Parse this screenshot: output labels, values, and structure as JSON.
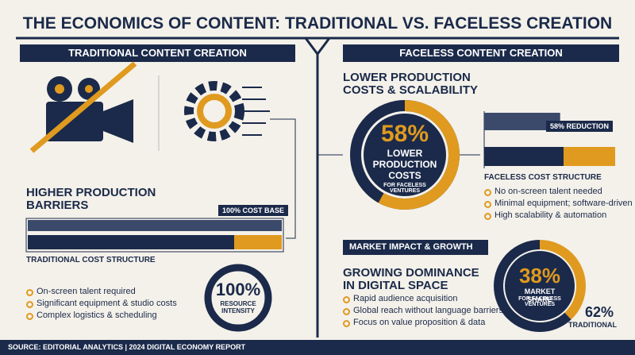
{
  "title": "THE ECONOMICS OF CONTENT: TRADITIONAL VS. FACELESS CREATION",
  "traditional": {
    "header": "TRADITIONAL CONTENT CREATION",
    "heading": "HIGHER PRODUCTION BARRIERS",
    "cost_bar": {
      "value": 100,
      "label": "100% COST BASE"
    },
    "structure_label": "TRADITIONAL COST STRUCTURE",
    "bullets": [
      "On-screen talent required",
      "Significant equipment & studio costs",
      "Complex logistics & scheduling"
    ],
    "donut": {
      "value": 100,
      "label": "100%",
      "caption": "RESOURCE INTENSITY"
    }
  },
  "faceless": {
    "header": "FACELESS CONTENT CREATION",
    "heading": "LOWER PRODUCTION COSTS & SCALABILITY",
    "donut": {
      "value": 58,
      "label": "58%",
      "caption": "LOWER PRODUCTION COSTS",
      "subcaption": "FOR FACELESS VENTURES"
    },
    "reduction_bar": {
      "value": 58,
      "label": "58% REDUCTION"
    },
    "structure_label": "FACELESS COST STRUCTURE",
    "bullets": [
      "No on-screen talent needed",
      "Minimal equipment; software-driven",
      "High scalability & automation"
    ]
  },
  "market": {
    "header": "MARKET IMPACT & GROWTH",
    "heading": "GROWING DOMINANCE IN DIGITAL SPACE",
    "bullets": [
      "Rapid audience acquisition",
      "Global reach without language barriers",
      "Focus on value proposition & data"
    ],
    "share": {
      "value": 38,
      "label": "38%",
      "caption": "MARKET SHARE",
      "subcaption": "FOR FACELESS VENTURES"
    },
    "other": {
      "value": 62,
      "label": "62%",
      "caption": "TRADITIONAL"
    }
  },
  "footer": "SOURCE: EDITORIAL ANALYTICS | 2024 DIGITAL ECONOMY REPORT"
}
